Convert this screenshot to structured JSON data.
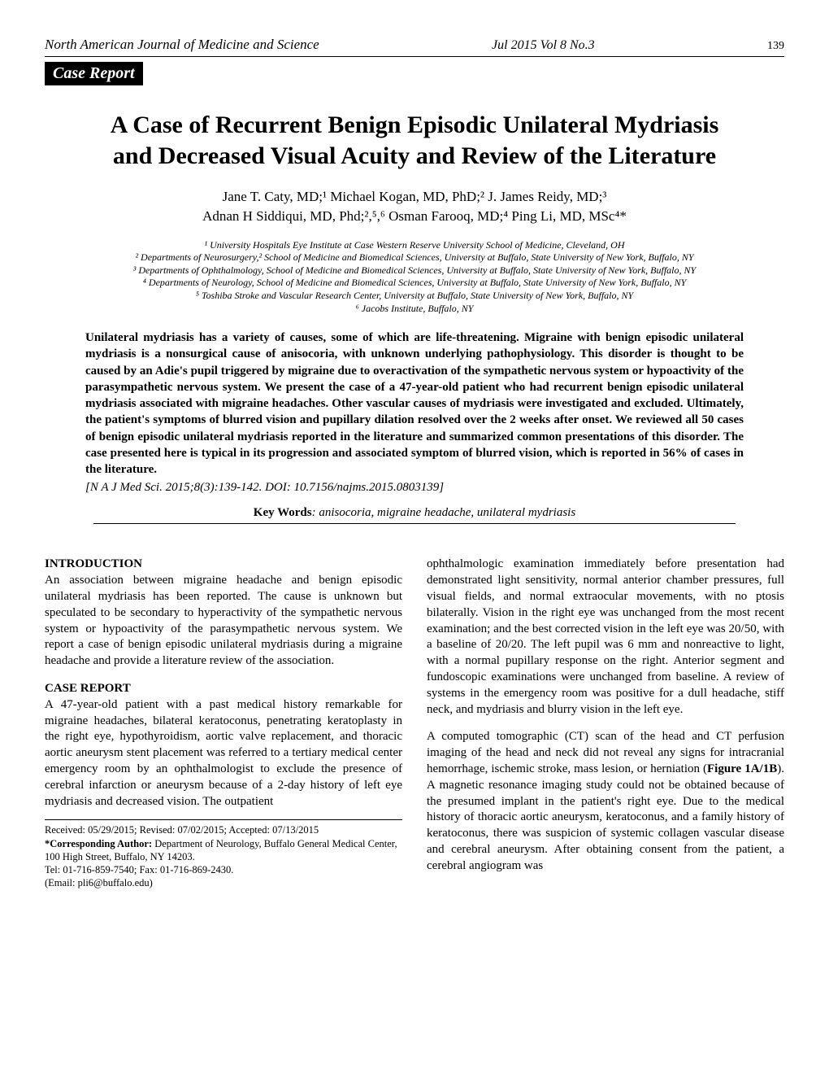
{
  "header": {
    "journal": "North American Journal of Medicine and Science",
    "issue": "Jul 2015 Vol 8 No.3",
    "page": "139"
  },
  "badge": "Case Report",
  "title": "A Case of Recurrent Benign Episodic Unilateral Mydriasis and Decreased Visual Acuity and Review of the Literature",
  "authors_line1": "Jane T. Caty, MD;¹ Michael Kogan, MD, PhD;² J. James Reidy, MD;³",
  "authors_line2": "Adnan H Siddiqui, MD, Phd;²,⁵,⁶ Osman Farooq, MD;⁴ Ping Li, MD, MSc⁴*",
  "affiliations": {
    "a1": "¹ University Hospitals Eye Institute at Case Western Reserve University School of Medicine, Cleveland, OH",
    "a2": "² Departments of Neurosurgery,² School of Medicine and Biomedical Sciences, University at Buffalo, State University of New York, Buffalo, NY",
    "a3": "³ Departments of Ophthalmology, School of Medicine and Biomedical Sciences, University at Buffalo, State University of New York, Buffalo, NY",
    "a4": "⁴ Departments of Neurology, School of Medicine and Biomedical Sciences, University at Buffalo, State University of New York, Buffalo, NY",
    "a5": "⁵ Toshiba Stroke and Vascular Research Center, University at Buffalo, State University of New York, Buffalo, NY",
    "a6": "⁶ Jacobs Institute, Buffalo, NY"
  },
  "abstract": "Unilateral mydriasis has a variety of causes, some of which are life-threatening. Migraine with benign episodic unilateral mydriasis is a nonsurgical cause of anisocoria, with unknown underlying pathophysiology. This disorder is thought to be caused by an Adie's pupil triggered by migraine due to overactivation of the sympathetic nervous system or hypoactivity of the parasympathetic nervous system. We present the case of a 47-year-old patient who had recurrent benign episodic unilateral mydriasis associated with migraine headaches. Other vascular causes of mydriasis were investigated and excluded. Ultimately, the patient's symptoms of blurred vision and pupillary dilation resolved over the 2 weeks after onset. We reviewed all 50 cases of benign episodic unilateral mydriasis reported in the literature and summarized common presentations of this disorder. The case presented here is typical in its progression and associated symptom of blurred vision, which is reported in 56% of cases in the literature.",
  "citation": "[N A J Med Sci. 2015;8(3):139-142.   DOI:  10.7156/najms.2015.0803139]",
  "keywords_label": "Key Words",
  "keywords_value": ": anisocoria, migraine headache, unilateral mydriasis",
  "intro_heading": "INTRODUCTION",
  "intro_para": "An association between migraine headache and benign episodic unilateral mydriasis has been reported. The cause is unknown but speculated to be secondary to hyperactivity of the sympathetic nervous system or hypoactivity of the parasympathetic nervous system. We report a case of benign episodic unilateral mydriasis during a migraine headache and provide a literature review of the association.",
  "case_heading": "CASE REPORT",
  "case_para_left": "A 47-year-old patient with a past medical history remarkable for migraine headaches, bilateral keratoconus, penetrating keratoplasty in the right eye, hypothyroidism, aortic valve replacement, and thoracic aortic aneurysm stent placement was referred to a tertiary medical center emergency room by an ophthalmologist to exclude the presence of cerebral infarction or aneurysm because of a 2-day history of left eye mydriasis and decreased vision. The outpatient",
  "case_para_right1": "ophthalmologic examination immediately before presentation had demonstrated light sensitivity, normal anterior chamber pressures, full visual fields, and normal extraocular movements, with no ptosis bilaterally. Vision in the right eye was unchanged from the most recent examination; and the best corrected vision in the left eye was 20/50, with a baseline of 20/20. The left pupil was 6 mm and nonreactive to light, with a normal pupillary response on the right. Anterior segment and fundoscopic examinations were unchanged from baseline. A review of systems in the emergency room was positive for a dull headache, stiff neck, and mydriasis and blurry vision in the left eye.",
  "case_para_right2_a": "A computed tomographic (CT) scan of the head and CT perfusion imaging of the head and neck did not reveal any signs for intracranial hemorrhage, ischemic stroke, mass lesion, or herniation (",
  "case_para_right2_fig": "Figure 1A/1B",
  "case_para_right2_b": "). A magnetic resonance imaging study could not be obtained because of the presumed implant in the patient's right eye. Due to the medical history of thoracic aortic aneurysm, keratoconus, and a family history of keratoconus, there was suspicion of systemic collagen vascular disease and cerebral aneurysm. After obtaining consent from the patient, a cerebral angiogram was",
  "footer": {
    "dates": "Received: 05/29/2015; Revised: 07/02/2015;  Accepted: 07/13/2015",
    "corr_label": "*Corresponding Author:",
    "corr_text": " Department of Neurology, Buffalo General Medical Center, 100 High Street, Buffalo, NY 14203.",
    "tel": "Tel: 01-716-859-7540; Fax: 01-716-869-2430.",
    "email": "(Email: pli6@buffalo.edu)"
  }
}
